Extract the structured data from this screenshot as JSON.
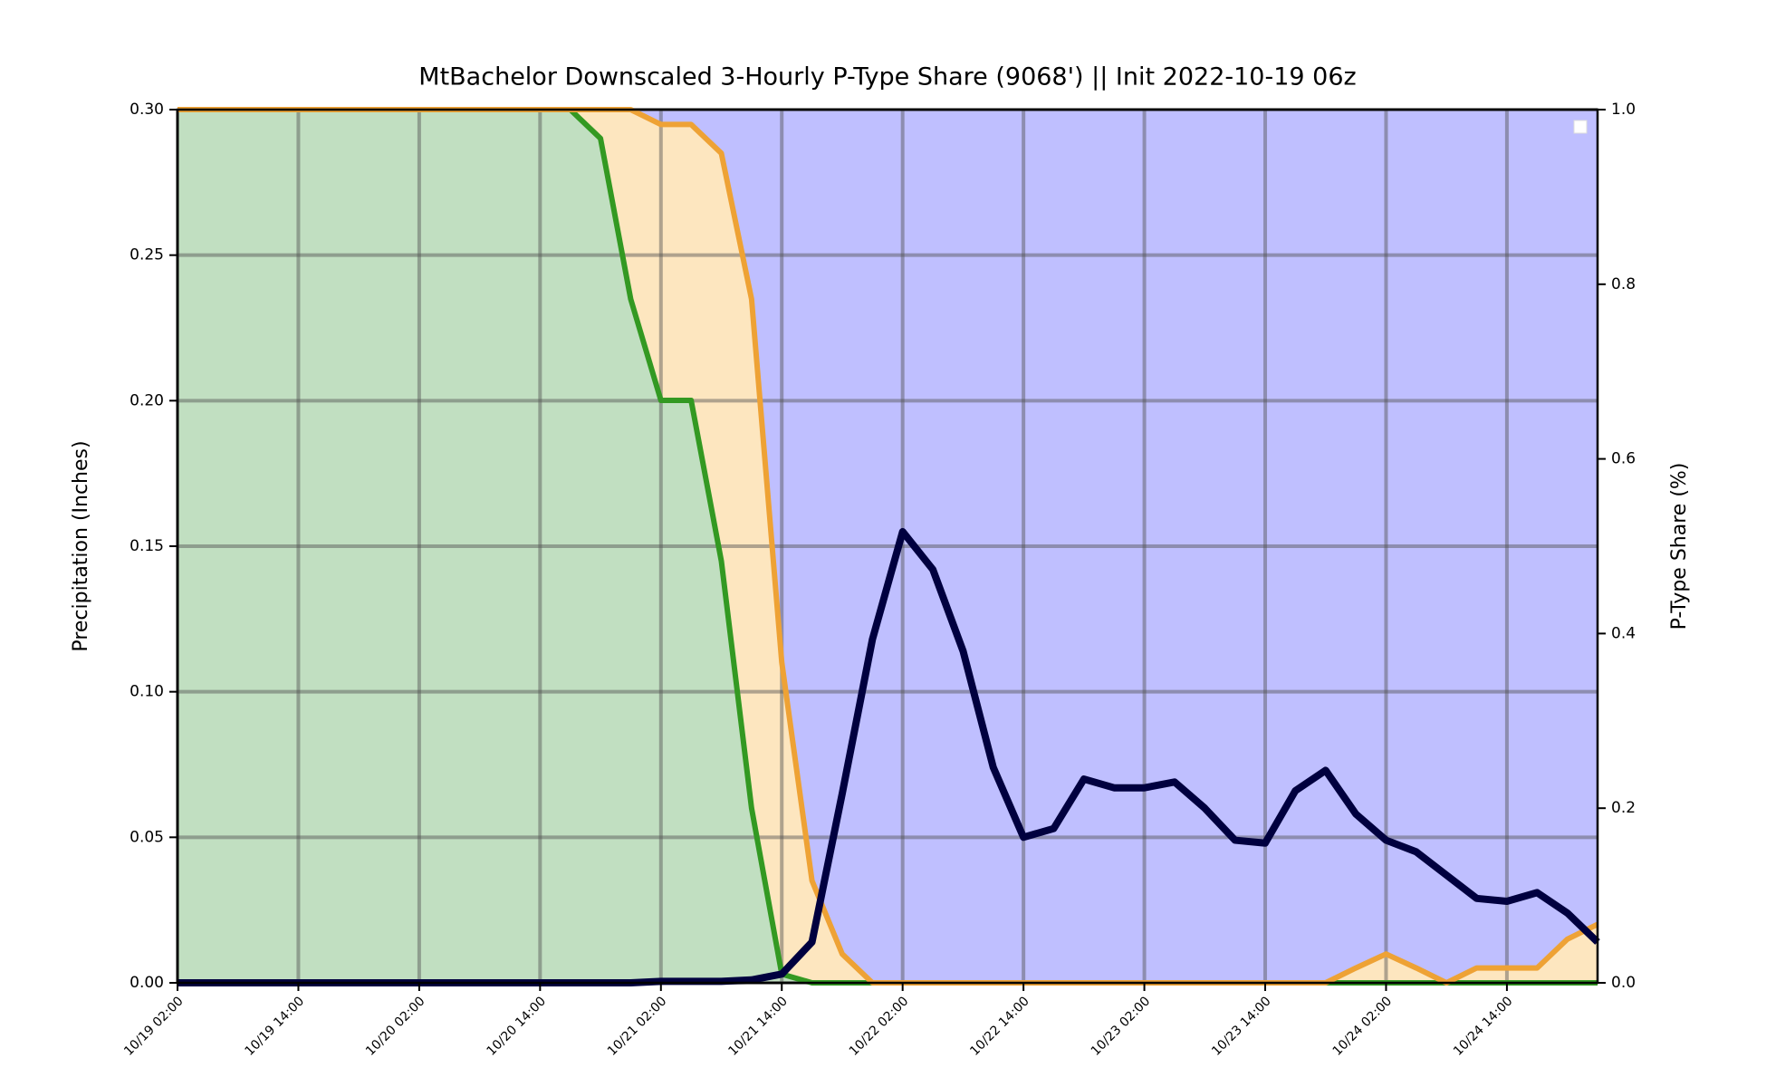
{
  "chart_data": {
    "type": "combo",
    "title": "MtBachelor Downscaled 3-Hourly P-Type Share (9068') || Init 2022-10-19 06z",
    "y_label": "Precipitation (Inches)",
    "y2_label": "P-Type Share (%)",
    "categories": [
      "10/19 02:00",
      null,
      null,
      null,
      "10/19 14:00",
      null,
      null,
      null,
      "10/20 02:00",
      null,
      null,
      null,
      "10/20 14:00",
      null,
      null,
      null,
      "10/21 02:00",
      null,
      null,
      null,
      "10/21 14:00",
      null,
      null,
      null,
      "10/22 02:00",
      null,
      null,
      null,
      "10/22 14:00",
      null,
      null,
      null,
      "10/23 02:00",
      null,
      null,
      null,
      "10/23 14:00",
      null,
      null,
      null,
      "10/24 02:00",
      null,
      null,
      null,
      "10/24 14:00",
      null,
      null,
      null
    ],
    "ylim": [
      0,
      0.3
    ],
    "yticks": [
      {
        "value": 0,
        "label": "0.00"
      },
      {
        "value": 0.05,
        "label": "0.05"
      },
      {
        "value": 0.1,
        "label": "0.10"
      },
      {
        "value": 0.15,
        "label": "0.15"
      },
      {
        "value": 0.2,
        "label": "0.20"
      },
      {
        "value": 0.25,
        "label": "0.25"
      },
      {
        "value": 0.3,
        "label": "0.30"
      }
    ],
    "y2lim": [
      0,
      1
    ],
    "y2ticks": [
      {
        "value": 0,
        "label": "0.0"
      },
      {
        "value": 0.2,
        "label": "0.2"
      },
      {
        "value": 0.4,
        "label": "0.4"
      },
      {
        "value": 0.6,
        "label": "0.6"
      },
      {
        "value": 0.8,
        "label": "0.8"
      },
      {
        "value": 1,
        "label": "1.0"
      }
    ],
    "grid": true,
    "legend": "upper right",
    "series": [
      {
        "type": "area",
        "axis": "y2",
        "color": "#c1dfc1",
        "line_color": "#339922",
        "values": [
          1,
          1,
          1,
          1,
          1,
          1,
          1,
          1,
          1,
          1,
          1,
          1,
          1,
          1,
          0.967,
          0.783,
          0.667,
          0.667,
          0.483,
          0.2,
          0.01,
          0,
          0,
          0,
          0,
          0,
          0,
          0,
          0,
          0,
          0,
          0,
          0,
          0,
          0,
          0,
          0,
          0,
          0,
          0,
          0,
          0,
          0,
          0,
          0,
          0,
          0,
          0
        ]
      },
      {
        "type": "area",
        "axis": "y2",
        "color": "#fde6bf",
        "line_color": "#eea235",
        "values": [
          0,
          0,
          0,
          0,
          0,
          0,
          0,
          0,
          0,
          0,
          0,
          0,
          0,
          0,
          0.033,
          0.217,
          0.316,
          0.316,
          0.467,
          0.583,
          0.357,
          0.117,
          0.033,
          0,
          0,
          0,
          0,
          0,
          0,
          0,
          0,
          0,
          0,
          0,
          0,
          0,
          0,
          0,
          0,
          0.017,
          0.033,
          0.017,
          0,
          0.017,
          0.017,
          0.017,
          0.05,
          0.067
        ]
      },
      {
        "type": "area",
        "axis": "y2",
        "color": "#bfbfff",
        "values": [
          0,
          0,
          0,
          0,
          0,
          0,
          0,
          0,
          0,
          0,
          0,
          0,
          0,
          0,
          0,
          0,
          0.017,
          0.017,
          0.05,
          0.217,
          0.633,
          0.883,
          0.967,
          1,
          1,
          1,
          1,
          1,
          1,
          1,
          1,
          1,
          1,
          1,
          1,
          1,
          1,
          1,
          1,
          0.983,
          0.967,
          0.983,
          1,
          0.983,
          0.983,
          0.983,
          0.95,
          0.933
        ]
      },
      {
        "type": "line",
        "color": "#00003f",
        "values": [
          0,
          0,
          0,
          0,
          0,
          0,
          0,
          0,
          0,
          0,
          0,
          0,
          0,
          0,
          0,
          0,
          0.0005,
          0.0005,
          0.0005,
          0.001,
          0.003,
          0.014,
          0.065,
          0.118,
          0.155,
          0.142,
          0.114,
          0.074,
          0.05,
          0.053,
          0.07,
          0.067,
          0.067,
          0.069,
          0.06,
          0.049,
          0.048,
          0.066,
          0.073,
          0.058,
          0.049,
          0.045,
          0.037,
          0.029,
          0.028,
          0.031,
          0.024,
          0.014
        ]
      }
    ]
  }
}
